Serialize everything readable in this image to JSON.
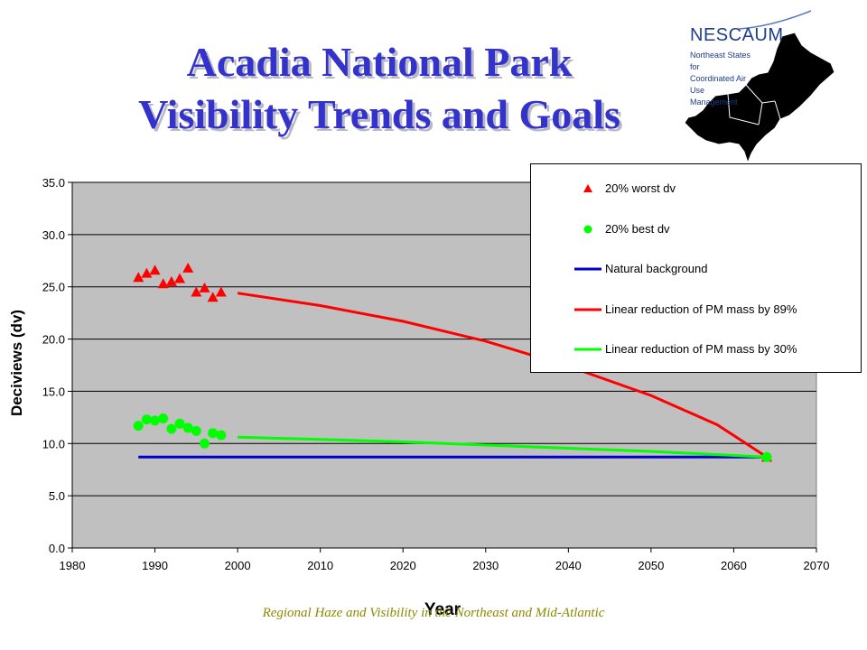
{
  "slide": {
    "title_line1": "Acadia National Park",
    "title_line2": "Visibility Trends and Goals",
    "footer": "Regional Haze and Visibility in the Northeast and Mid-Atlantic"
  },
  "logo": {
    "name": "NESCAUM",
    "subtitle_lines": [
      "Northeast States for",
      "Coordinated Air Use",
      "Management"
    ],
    "icon": "northeast-states-map-icon",
    "color": "#1f3d8c"
  },
  "chart_data": {
    "type": "scatter",
    "xlabel": "Year",
    "ylabel": "Deciviews (dv)",
    "xlim": [
      1980,
      2070
    ],
    "ylim": [
      0,
      35
    ],
    "x_ticks": [
      "1980",
      "1990",
      "2000",
      "2010",
      "2020",
      "2030",
      "2040",
      "2050",
      "2060",
      "2070"
    ],
    "y_ticks": [
      "0.0",
      "5.0",
      "10.0",
      "15.0",
      "20.0",
      "25.0",
      "30.0",
      "35.0"
    ],
    "grid": "horizontal",
    "plot_background": "#c0c0c0",
    "legend_position": "top-right",
    "series": [
      {
        "name": "20% worst dv",
        "kind": "marker",
        "marker": "triangle",
        "color": "#ff0000",
        "points": [
          [
            1988,
            25.9
          ],
          [
            1989,
            26.3
          ],
          [
            1990,
            26.6
          ],
          [
            1991,
            25.3
          ],
          [
            1992,
            25.5
          ],
          [
            1993,
            25.8
          ],
          [
            1994,
            26.8
          ],
          [
            1995,
            24.5
          ],
          [
            1996,
            24.9
          ],
          [
            1997,
            24.0
          ],
          [
            1998,
            24.5
          ],
          [
            2064,
            8.7
          ]
        ]
      },
      {
        "name": "20% best dv",
        "kind": "marker",
        "marker": "circle",
        "color": "#00ff00",
        "points": [
          [
            1988,
            11.7
          ],
          [
            1989,
            12.3
          ],
          [
            1990,
            12.2
          ],
          [
            1991,
            12.4
          ],
          [
            1992,
            11.4
          ],
          [
            1993,
            11.9
          ],
          [
            1994,
            11.5
          ],
          [
            1995,
            11.2
          ],
          [
            1996,
            10.0
          ],
          [
            1997,
            11.0
          ],
          [
            1998,
            10.8
          ],
          [
            2064,
            8.7
          ]
        ]
      },
      {
        "name": "Natural background",
        "kind": "line",
        "color": "#0000cc",
        "points": [
          [
            1988,
            8.7
          ],
          [
            2064,
            8.7
          ]
        ]
      },
      {
        "name": "Linear reduction of PM mass by 89%",
        "kind": "line",
        "color": "#ff0000",
        "points": [
          [
            2000,
            24.4
          ],
          [
            2010,
            23.2
          ],
          [
            2020,
            21.7
          ],
          [
            2030,
            19.8
          ],
          [
            2040,
            17.4
          ],
          [
            2050,
            14.6
          ],
          [
            2058,
            11.8
          ],
          [
            2064,
            8.7
          ]
        ]
      },
      {
        "name": "Linear reduction of PM mass by 30%",
        "kind": "line",
        "color": "#00ff00",
        "points": [
          [
            2000,
            10.6
          ],
          [
            2010,
            10.4
          ],
          [
            2020,
            10.15
          ],
          [
            2030,
            9.85
          ],
          [
            2040,
            9.55
          ],
          [
            2050,
            9.25
          ],
          [
            2064,
            8.7
          ]
        ]
      }
    ]
  }
}
